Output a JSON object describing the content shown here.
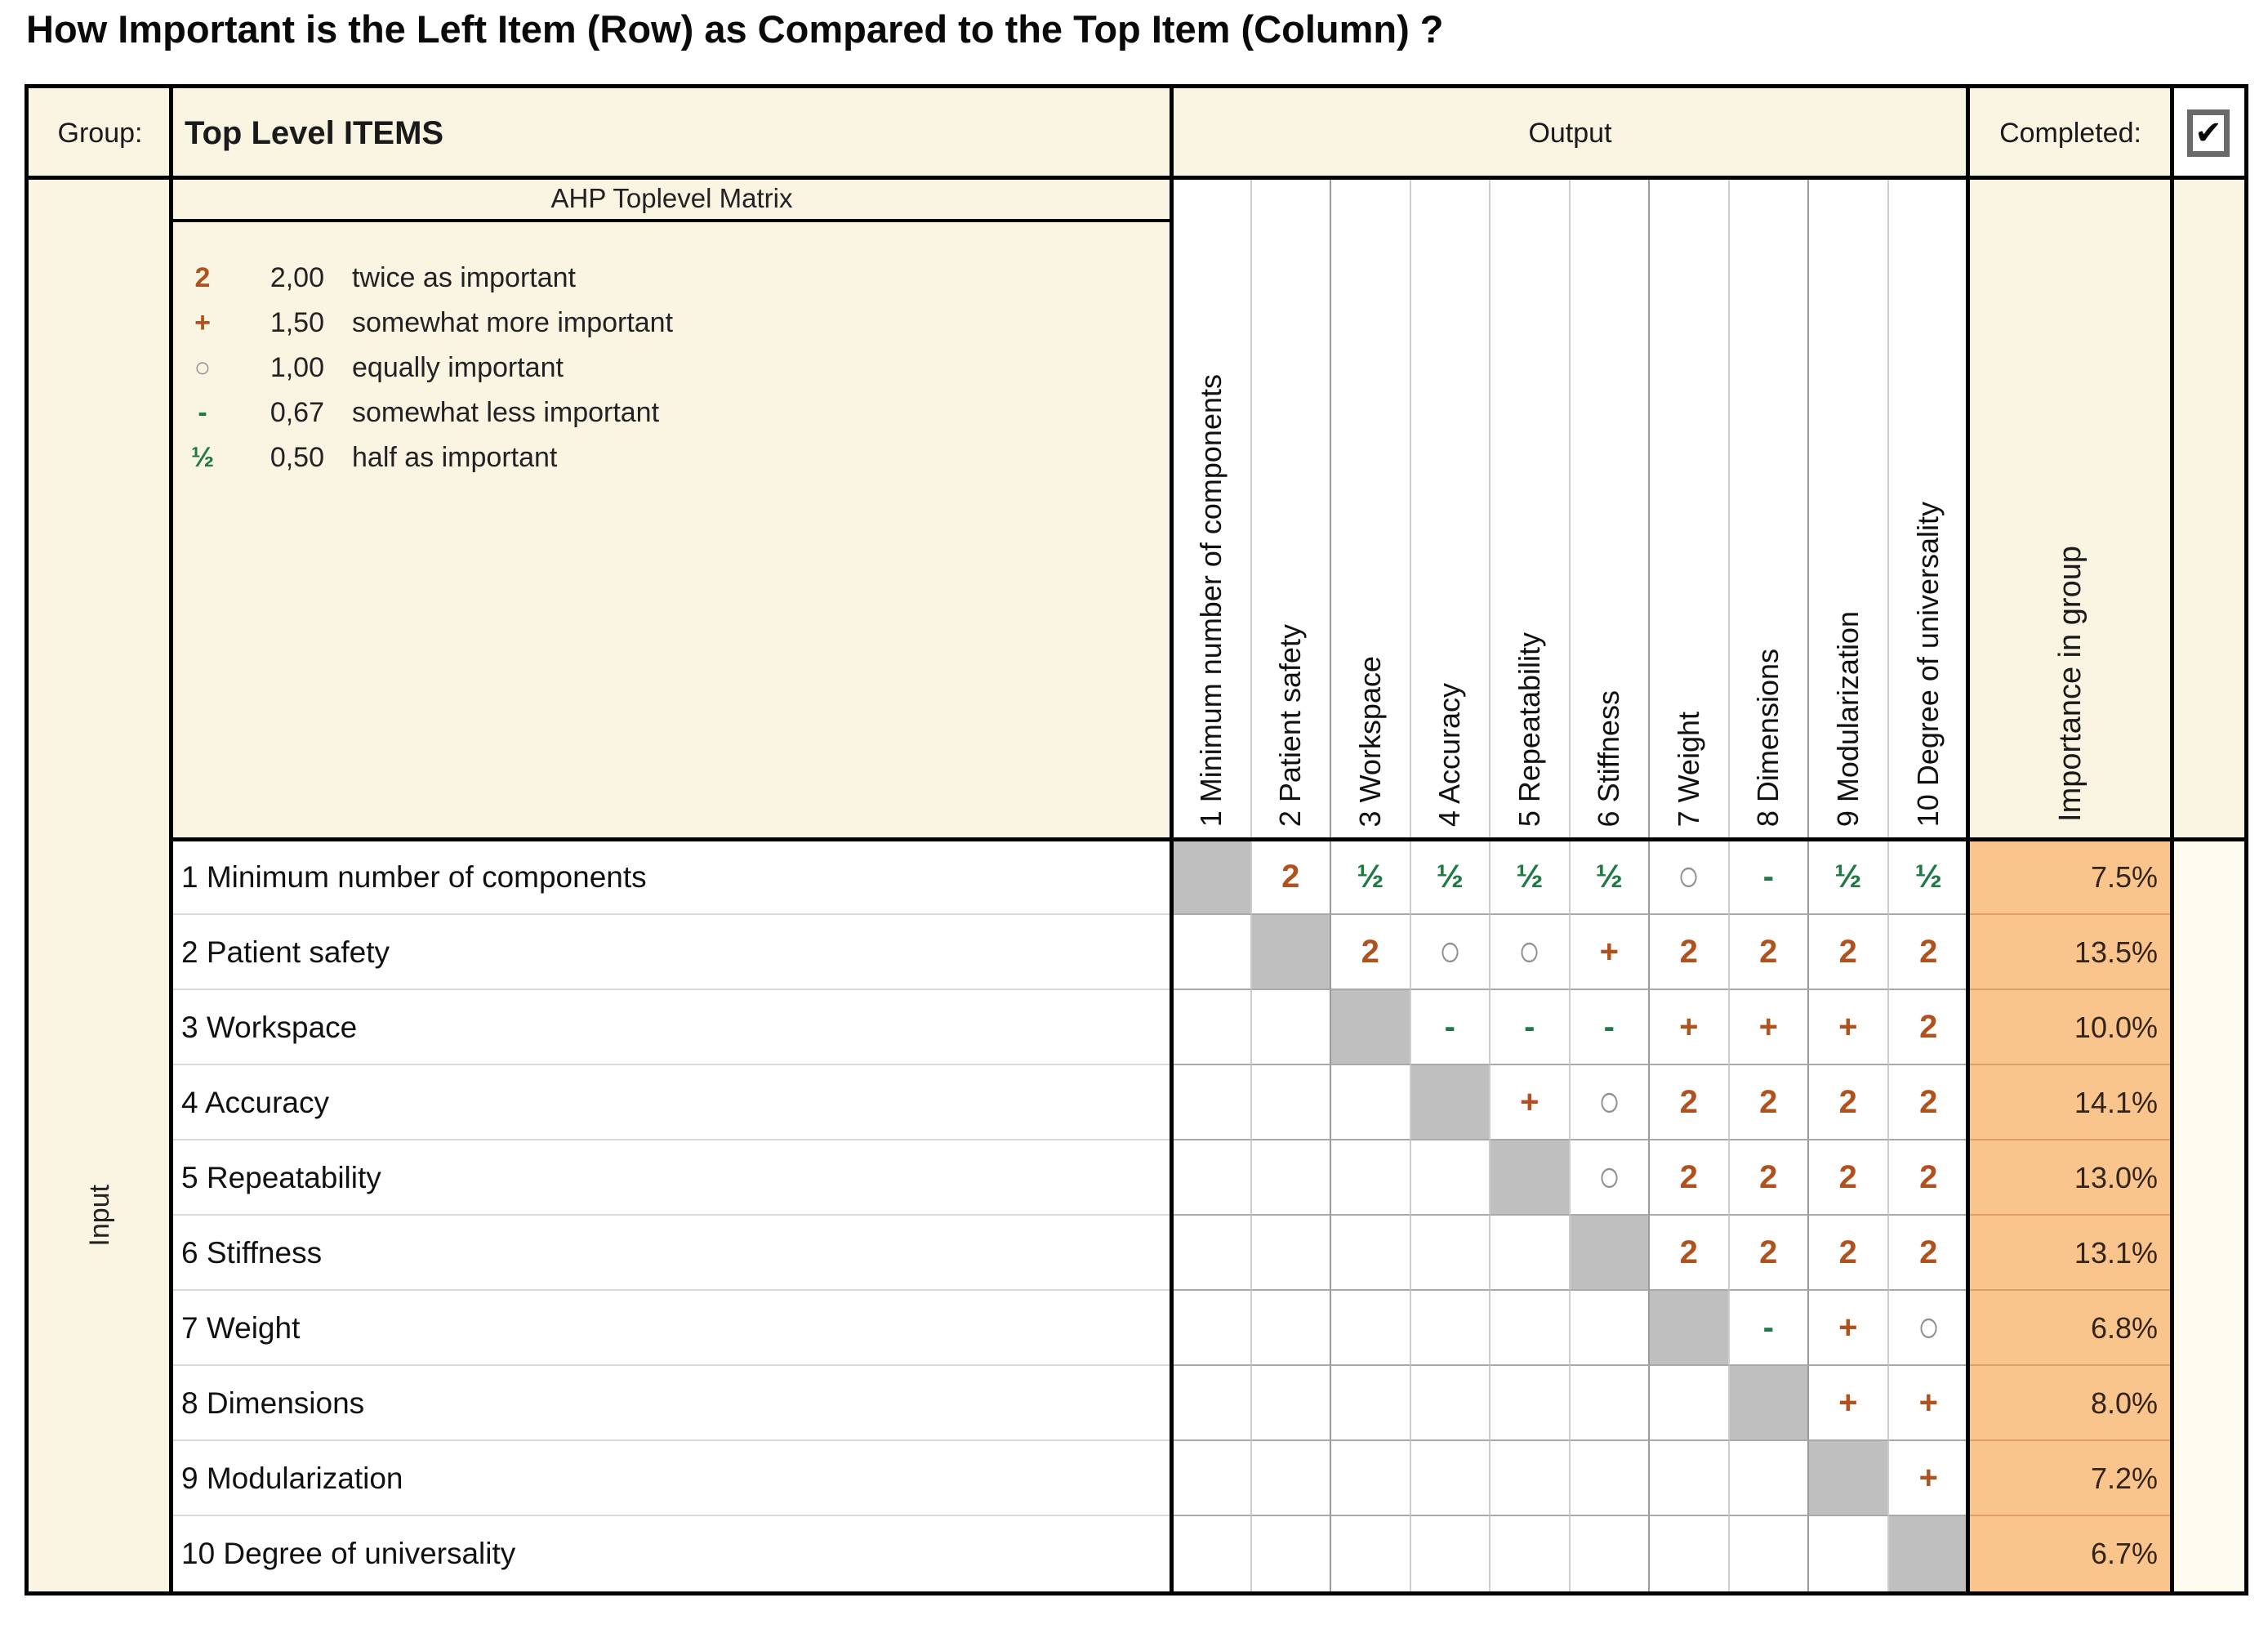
{
  "title": "How Important is the Left Item (Row) as Compared to the Top Item (Column) ?",
  "header": {
    "group_label": "Group:",
    "group_value": "Top Level ITEMS",
    "output_label": "Output",
    "completed_label": "Completed:",
    "completed_checked": true,
    "checkmark": "✔"
  },
  "matrix_title": "AHP Toplevel Matrix",
  "legend": [
    {
      "symbol": "2",
      "color": "orange",
      "value": "2,00",
      "text": "twice as important"
    },
    {
      "symbol": "+",
      "color": "orange",
      "value": "1,50",
      "text": "somewhat more important"
    },
    {
      "symbol": "○",
      "color": "gray",
      "value": "1,00",
      "text": "equally important"
    },
    {
      "symbol": "-",
      "color": "green",
      "value": "0,67",
      "text": "somewhat less important"
    },
    {
      "symbol": "½",
      "color": "green",
      "value": "0,50",
      "text": "half as important"
    }
  ],
  "input_label": "Input",
  "importance_label": "Importance in group",
  "items": [
    "1 Minimum number of components",
    "2 Patient safety",
    "3 Workspace",
    "4 Accuracy",
    "5 Repeatability",
    "6 Stiffness",
    "7 Weight",
    "8 Dimensions",
    "9 Modularization",
    "10 Degree of universality"
  ],
  "matrix": [
    [
      "#",
      "2",
      "½",
      "½",
      "½",
      "½",
      "○",
      "-",
      "½",
      "½"
    ],
    [
      "",
      "#",
      "2",
      "○",
      "○",
      "+",
      "2",
      "2",
      "2",
      "2"
    ],
    [
      "",
      "",
      "#",
      "-",
      "-",
      "-",
      "+",
      "+",
      "+",
      "2"
    ],
    [
      "",
      "",
      "",
      "#",
      "+",
      "○",
      "2",
      "2",
      "2",
      "2"
    ],
    [
      "",
      "",
      "",
      "",
      "#",
      "○",
      "2",
      "2",
      "2",
      "2"
    ],
    [
      "",
      "",
      "",
      "",
      "",
      "#",
      "2",
      "2",
      "2",
      "2"
    ],
    [
      "",
      "",
      "",
      "",
      "",
      "",
      "#",
      "-",
      "+",
      "○"
    ],
    [
      "",
      "",
      "",
      "",
      "",
      "",
      "",
      "#",
      "+",
      "+"
    ],
    [
      "",
      "",
      "",
      "",
      "",
      "",
      "",
      "",
      "#",
      "+"
    ],
    [
      "",
      "",
      "",
      "",
      "",
      "",
      "",
      "",
      "",
      "#"
    ]
  ],
  "importance": [
    "7.5%",
    "13.5%",
    "10.0%",
    "14.1%",
    "13.0%",
    "13.1%",
    "6.8%",
    "8.0%",
    "7.2%",
    "6.7%"
  ],
  "symbol_colors": {
    "2": "orange",
    "+": "orange",
    "-": "green",
    "½": "green",
    "○": "gray"
  },
  "colors": {
    "cream": "#faf4e2",
    "orange_fill": "#fac48d",
    "diag_gray": "#bfbfbf",
    "symbol_orange": "#b0521e",
    "symbol_green": "#1f7a44",
    "symbol_gray": "#8f8f8f"
  }
}
